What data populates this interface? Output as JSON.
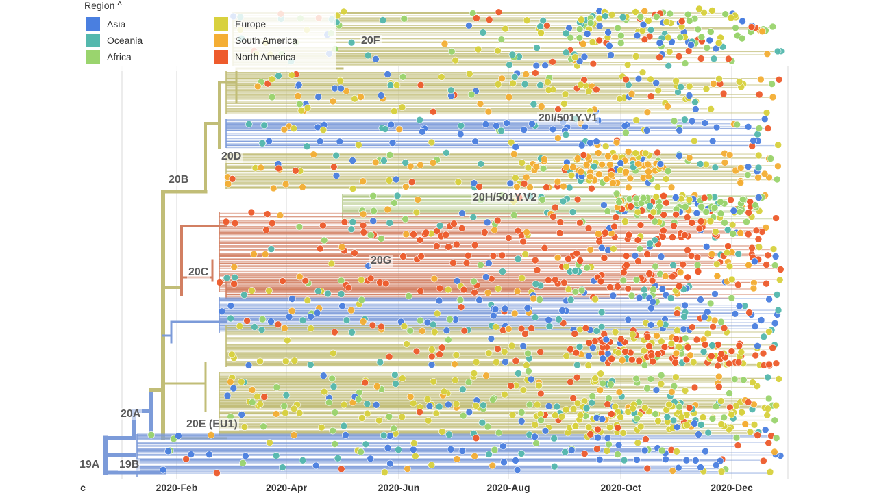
{
  "legend": {
    "title": "Region",
    "items": [
      {
        "label": "Asia",
        "color": "#4a7fe0"
      },
      {
        "label": "Oceania",
        "color": "#54b8ad"
      },
      {
        "label": "Africa",
        "color": "#9ad46e"
      },
      {
        "label": "Europe",
        "color": "#d8d13e"
      },
      {
        "label": "South America",
        "color": "#f4ae34"
      },
      {
        "label": "North America",
        "color": "#ee5b2c"
      }
    ]
  },
  "clades": [
    {
      "label": "19A"
    },
    {
      "label": "19B"
    },
    {
      "label": "20A"
    },
    {
      "label": "20B"
    },
    {
      "label": "20C"
    },
    {
      "label": "20D"
    },
    {
      "label": "20E (EU1)"
    },
    {
      "label": "20F"
    },
    {
      "label": "20G"
    },
    {
      "label": "20H/501Y.V2"
    },
    {
      "label": "20I/501Y.V1"
    }
  ],
  "axis": {
    "ticks": [
      "2020-Feb",
      "2020-Apr",
      "2020-Jun",
      "2020-Aug",
      "2020-Oct",
      "2020-Dec"
    ],
    "edge_label": "c"
  },
  "colors": {
    "trunk": "#c1bd77",
    "asia_branch": "#7c9bd9",
    "na_branch": "#d27f62",
    "grid": "#e6e6e6"
  }
}
